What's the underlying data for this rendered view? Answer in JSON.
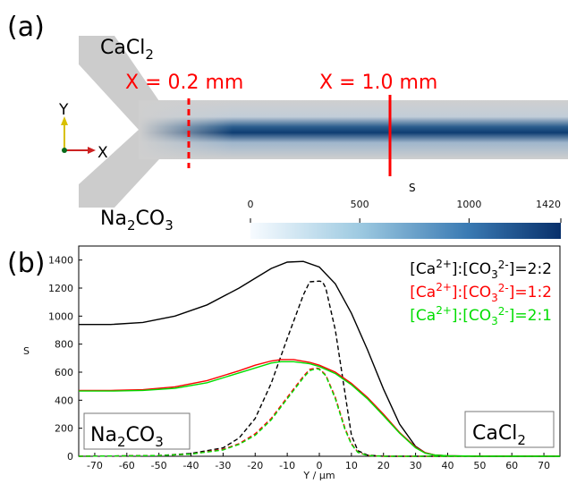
{
  "panel_a": {
    "label": "(a)",
    "inlet_top": {
      "prefix": "CaCl",
      "sub": "2"
    },
    "inlet_bottom": {
      "p1": "Na",
      "s1": "2",
      "p2": "CO",
      "s2": "3"
    },
    "marker_1": "X = 0.2 mm",
    "marker_2": "X = 1.0 mm",
    "axis_y": "Y",
    "axis_x": "X",
    "colorbar": {
      "title": "S",
      "ticks": [
        "0",
        "500",
        "1000",
        "1420"
      ],
      "values": [
        0,
        500,
        1000,
        1420
      ]
    },
    "colors": {
      "channel": "#cccccc",
      "high": "#08306b",
      "marker": "#ff0000"
    }
  },
  "panel_b": {
    "label": "(b)",
    "box_left": {
      "p1": "Na",
      "s1": "2",
      "p2": "CO",
      "s2": "3"
    },
    "box_right": {
      "prefix": "CaCl",
      "sub": "2"
    }
  },
  "chart_data": {
    "type": "line",
    "xlabel": "Y / µm",
    "ylabel": "S",
    "xlim": [
      -75,
      75
    ],
    "ylim": [
      0,
      1500
    ],
    "xticks": [
      -70,
      -60,
      -50,
      -40,
      -30,
      -20,
      -10,
      0,
      10,
      20,
      30,
      40,
      50,
      60,
      70
    ],
    "yticks": [
      0,
      200,
      400,
      600,
      800,
      1000,
      1200,
      1400
    ],
    "legend": [
      {
        "label": "[Ca2+]:[CO32-]=2:2",
        "color": "#000000"
      },
      {
        "label": "[Ca2+]:[CO32-]=1:2",
        "color": "#ff0000"
      },
      {
        "label": "[Ca2+]:[CO32-]=2:1",
        "color": "#00dd00"
      }
    ],
    "legend_parts": [
      {
        "b1": "[Ca",
        "sup1": "2+",
        "b2": "]:[CO",
        "sub": "3",
        "sup2": "2-",
        "b3": "]=2:2"
      },
      {
        "b1": "[Ca",
        "sup1": "2+",
        "b2": "]:[CO",
        "sub": "3",
        "sup2": "2-",
        "b3": "]=1:2"
      },
      {
        "b1": "[Ca",
        "sup1": "2+",
        "b2": "]:[CO",
        "sub": "3",
        "sup2": "2-",
        "b3": "]=2:1"
      }
    ],
    "series": [
      {
        "color": "#000000",
        "dash": false,
        "x": [
          -75,
          -65,
          -55,
          -45,
          -35,
          -25,
          -20,
          -15,
          -10,
          -5,
          0,
          5,
          10,
          15,
          20,
          25,
          30,
          33,
          36,
          40,
          50,
          75
        ],
        "y": [
          940,
          940,
          955,
          1000,
          1080,
          1200,
          1270,
          1340,
          1385,
          1390,
          1350,
          1230,
          1020,
          760,
          480,
          230,
          70,
          25,
          8,
          3,
          0,
          0
        ]
      },
      {
        "color": "#000000",
        "dash": true,
        "x": [
          -75,
          -50,
          -40,
          -30,
          -25,
          -20,
          -15,
          -10,
          -5,
          -3,
          0,
          1,
          2,
          5,
          8,
          10,
          12,
          15,
          20,
          30,
          75
        ],
        "y": [
          0,
          5,
          20,
          60,
          130,
          270,
          520,
          840,
          1150,
          1245,
          1250,
          1245,
          1200,
          900,
          450,
          150,
          40,
          8,
          0,
          0,
          0
        ]
      },
      {
        "color": "#ff0000",
        "dash": false,
        "x": [
          -75,
          -65,
          -55,
          -45,
          -35,
          -25,
          -20,
          -15,
          -12,
          -8,
          -3,
          0,
          5,
          10,
          15,
          20,
          25,
          30,
          33,
          36,
          40,
          50,
          75
        ],
        "y": [
          470,
          470,
          475,
          495,
          540,
          610,
          650,
          680,
          690,
          690,
          670,
          650,
          600,
          520,
          420,
          300,
          170,
          65,
          25,
          8,
          3,
          0,
          0
        ]
      },
      {
        "color": "#ff0000",
        "dash": true,
        "x": [
          -75,
          -50,
          -40,
          -30,
          -25,
          -20,
          -15,
          -10,
          -5,
          -3,
          -1,
          0,
          2,
          5,
          8,
          10,
          12,
          15,
          20,
          75
        ],
        "y": [
          0,
          5,
          15,
          50,
          90,
          160,
          270,
          420,
          570,
          620,
          630,
          625,
          580,
          420,
          200,
          90,
          30,
          5,
          0,
          0
        ]
      },
      {
        "color": "#00dd00",
        "dash": false,
        "x": [
          -75,
          -65,
          -55,
          -45,
          -35,
          -25,
          -20,
          -15,
          -12,
          -8,
          -3,
          0,
          5,
          10,
          15,
          20,
          25,
          30,
          33,
          36,
          40,
          50,
          75
        ],
        "y": [
          465,
          465,
          470,
          485,
          525,
          595,
          630,
          665,
          675,
          675,
          660,
          640,
          590,
          510,
          410,
          290,
          165,
          60,
          22,
          8,
          3,
          0,
          0
        ]
      },
      {
        "color": "#00dd00",
        "dash": true,
        "x": [
          -75,
          -50,
          -40,
          -30,
          -25,
          -20,
          -15,
          -10,
          -5,
          -3,
          -1,
          0,
          2,
          5,
          8,
          10,
          12,
          15,
          20,
          75
        ],
        "y": [
          0,
          5,
          15,
          45,
          85,
          150,
          260,
          410,
          560,
          610,
          625,
          620,
          575,
          410,
          190,
          85,
          28,
          5,
          0,
          0
        ]
      }
    ]
  }
}
